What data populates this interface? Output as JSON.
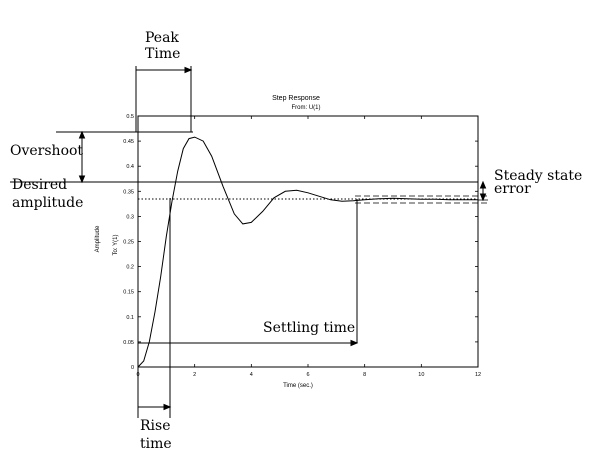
{
  "chart_data": {
    "type": "line",
    "title": "Step Response",
    "subtitle": "From: U(1)",
    "xlabel": "Time (sec.)",
    "ylabel": "Amplitude",
    "ylabel2": "To: Y(1)",
    "xlim": [
      0,
      12
    ],
    "ylim": [
      0,
      0.5
    ],
    "xticks": [
      "0",
      "2",
      "4",
      "6",
      "8",
      "10",
      "12"
    ],
    "yticks": [
      "0",
      "0.05",
      "0.1",
      "0.15",
      "0.2",
      "0.25",
      "0.3",
      "0.35",
      "0.4",
      "0.45",
      "0.5"
    ],
    "series": [
      {
        "x": [
          0,
          0.2,
          0.4,
          0.6,
          0.8,
          1.0,
          1.2,
          1.4,
          1.6,
          1.8,
          2.0,
          2.3,
          2.6,
          3.0,
          3.4,
          3.7,
          4.0,
          4.4,
          4.8,
          5.2,
          5.6,
          6.0,
          6.4,
          6.8,
          7.2,
          7.6,
          8.0,
          8.5,
          9.0,
          9.5,
          10.0,
          10.5,
          11.0,
          12.0
        ],
        "values": [
          0,
          0.012,
          0.05,
          0.11,
          0.18,
          0.26,
          0.33,
          0.39,
          0.435,
          0.455,
          0.458,
          0.45,
          0.42,
          0.36,
          0.305,
          0.285,
          0.288,
          0.31,
          0.337,
          0.35,
          0.352,
          0.347,
          0.34,
          0.333,
          0.33,
          0.331,
          0.333,
          0.335,
          0.336,
          0.335,
          0.334,
          0.334,
          0.333,
          0.333
        ]
      }
    ],
    "reference_lines": {
      "desired_amplitude": 0.365,
      "overshoot_level": 0.46,
      "final_value": 0.333,
      "settling_band_upper": 0.338,
      "settling_band_lower": 0.328
    },
    "markers": {
      "peak_time": 1.9,
      "rise_time": 1.15,
      "settling_time": 7.8
    }
  },
  "annotations": {
    "peak_time": [
      "Peak",
      "Time"
    ],
    "overshoot": "Overshoot",
    "desired_amplitude": [
      "Desired",
      "amplitude"
    ],
    "steady_state_error": [
      "Steady state",
      "error"
    ],
    "settling_time": "Settling time",
    "rise_time": [
      "Rise",
      "time"
    ]
  }
}
